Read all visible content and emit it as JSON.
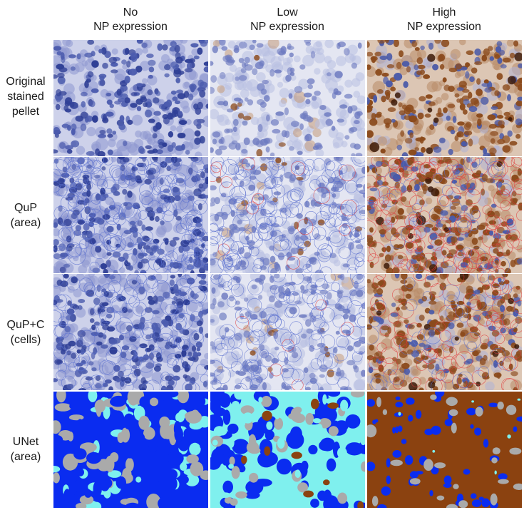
{
  "columns": [
    {
      "line1": "No",
      "line2": "NP expression"
    },
    {
      "line1": "Low",
      "line2": "NP expression"
    },
    {
      "line1": "High",
      "line2": "NP expression"
    }
  ],
  "rows": [
    {
      "lines": [
        "Original",
        "stained",
        "pellet"
      ]
    },
    {
      "lines": [
        "QuP",
        "(area)"
      ]
    },
    {
      "lines": [
        "QuP+C",
        "(cells)"
      ]
    },
    {
      "lines": [
        "UNet",
        "(area)"
      ]
    }
  ],
  "colors": {
    "hematoxylin_nuclei": "#3a4fa0",
    "dab_brown": "#8b4a1c",
    "tissue_background": "#c9cde8",
    "outline_blue": "#5a6fd0",
    "outline_red": "#e0383a",
    "unet_blue": "#0a2cf0",
    "unet_cyan": "#7ff0ee",
    "unet_gray": "#aaaaaa",
    "unet_brown": "#8b4210"
  }
}
